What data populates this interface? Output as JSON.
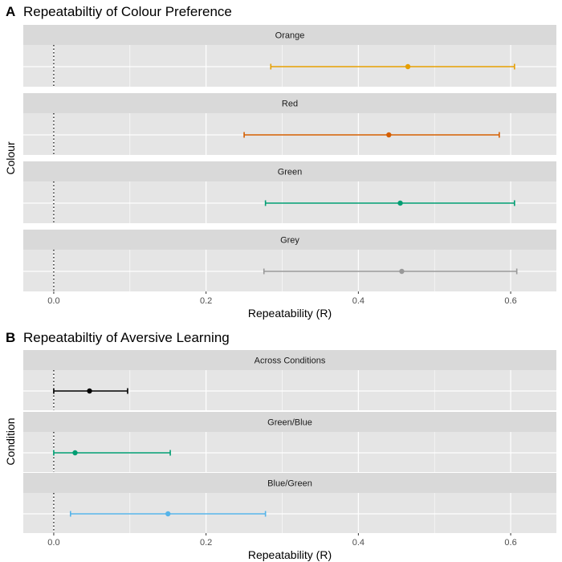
{
  "chart_data": [
    {
      "type": "forest",
      "panel": "A",
      "title": "Repeatabiltiy of Colour Preference",
      "xlabel": "Repeatability (R)",
      "ylabel": "Colour",
      "xlim": [
        -0.04,
        0.66
      ],
      "xticks": [
        0.0,
        0.2,
        0.4,
        0.6
      ],
      "xtick_labels": [
        "0.0",
        "0.2",
        "0.4",
        "0.6"
      ],
      "reference_line": 0.0,
      "grid": true,
      "facets": [
        {
          "name": "Orange",
          "estimate": 0.465,
          "lower": 0.285,
          "upper": 0.605,
          "color": "#E69F00"
        },
        {
          "name": "Red",
          "estimate": 0.44,
          "lower": 0.25,
          "upper": 0.585,
          "color": "#D55E00"
        },
        {
          "name": "Green",
          "estimate": 0.455,
          "lower": 0.278,
          "upper": 0.605,
          "color": "#009E73"
        },
        {
          "name": "Grey",
          "estimate": 0.457,
          "lower": 0.276,
          "upper": 0.608,
          "color": "#999999"
        }
      ]
    },
    {
      "type": "forest",
      "panel": "B",
      "title": "Repeatabiltiy of Aversive Learning",
      "xlabel": "Repeatability (R)",
      "ylabel": "Condition",
      "xlim": [
        -0.04,
        0.66
      ],
      "xticks": [
        0.0,
        0.2,
        0.4,
        0.6
      ],
      "xtick_labels": [
        "0.0",
        "0.2",
        "0.4",
        "0.6"
      ],
      "reference_line": 0.0,
      "grid": true,
      "facets": [
        {
          "name": "Across Conditions",
          "estimate": 0.047,
          "lower": 0.0,
          "upper": 0.097,
          "color": "#000000"
        },
        {
          "name": "Green/Blue",
          "estimate": 0.028,
          "lower": 0.0,
          "upper": 0.153,
          "color": "#009E73"
        },
        {
          "name": "Blue/Green",
          "estimate": 0.15,
          "lower": 0.022,
          "upper": 0.278,
          "color": "#56B4E9"
        }
      ]
    }
  ],
  "colors": {
    "panel_bg": "#e5e5e5",
    "strip_bg": "#d9d9d9",
    "grid": "#ffffff"
  }
}
